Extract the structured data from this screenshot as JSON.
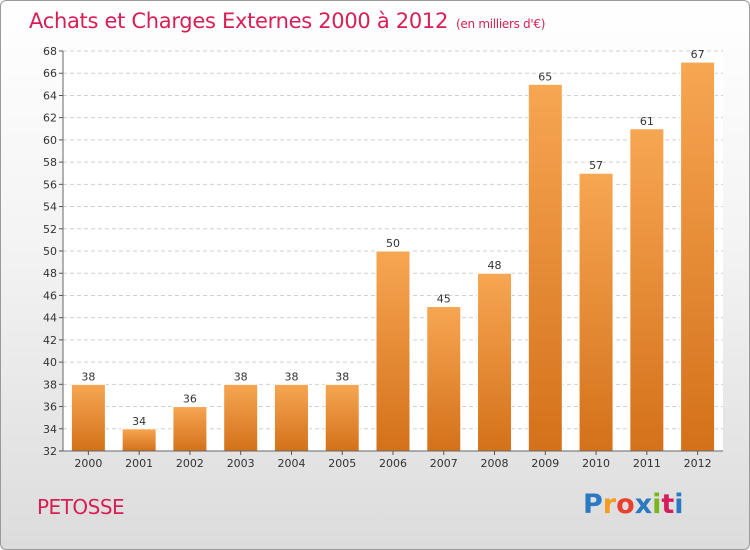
{
  "title": "Achats et Charges Externes 2000 à 2012",
  "subtitle": "(en milliers d'€)",
  "city": "PETOSSE",
  "logo": {
    "letters": [
      "P",
      "r",
      "o",
      "x",
      "i",
      "t",
      "i"
    ],
    "colors": [
      "#2b79c2",
      "#f39c1f",
      "#e8402c",
      "#2b79c2",
      "#7ab51d",
      "#d61d5c",
      "#2b79c2"
    ]
  },
  "colors": {
    "title": "#d81f55",
    "bar_top": "#f7a652",
    "bar_bottom": "#d4711a"
  },
  "chart_data": {
    "type": "bar",
    "title": "Achats et Charges Externes 2000 à 2012",
    "subtitle": "(en milliers d'€)",
    "categories": [
      "2000",
      "2001",
      "2002",
      "2003",
      "2004",
      "2005",
      "2006",
      "2007",
      "2008",
      "2009",
      "2010",
      "2011",
      "2012"
    ],
    "values": [
      38,
      34,
      36,
      38,
      38,
      38,
      50,
      45,
      48,
      65,
      57,
      61,
      67
    ],
    "ylim": [
      32,
      68
    ],
    "yticks": [
      "32",
      "34",
      "36",
      "38",
      "40",
      "42",
      "44",
      "46",
      "48",
      "50",
      "52",
      "54",
      "56",
      "58",
      "60",
      "62",
      "64",
      "66",
      "68"
    ],
    "grid": true,
    "xlabel": "",
    "ylabel": ""
  }
}
